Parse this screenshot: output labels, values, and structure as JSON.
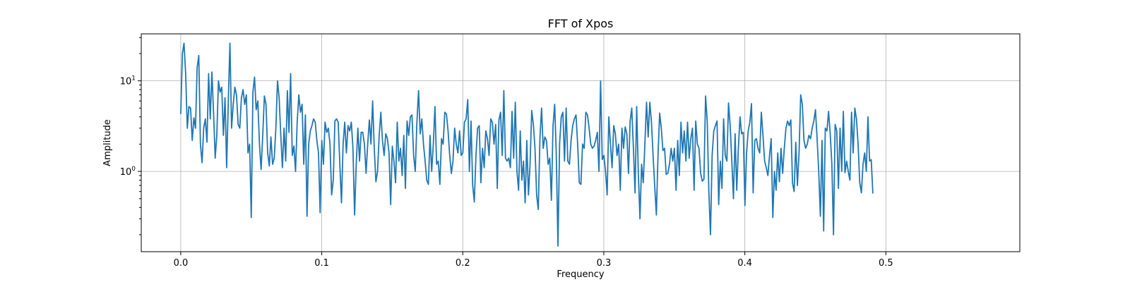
{
  "chart_data": {
    "type": "line",
    "title": "FFT of Xpos",
    "xlabel": "Frequency",
    "ylabel": "Amplitude",
    "xlim": [
      -0.028,
      0.595
    ],
    "ylim": [
      0.13,
      33
    ],
    "yscale": "log",
    "grid": true,
    "series_color": "#1f77b4",
    "xticks": [
      {
        "value": 0.0,
        "label": "0.0"
      },
      {
        "value": 0.1,
        "label": "0.1"
      },
      {
        "value": 0.2,
        "label": "0.2"
      },
      {
        "value": 0.3,
        "label": "0.3"
      },
      {
        "value": 0.4,
        "label": "0.4"
      },
      {
        "value": 0.5,
        "label": "0.5"
      }
    ],
    "yticks": [
      {
        "value": 1,
        "base": "10",
        "exp": "0"
      },
      {
        "value": 10,
        "base": "10",
        "exp": "1"
      }
    ],
    "x_start": 0.0,
    "x_step": 0.001163,
    "values": [
      4.3,
      20.0,
      26.0,
      12.0,
      3.0,
      5.2,
      5.0,
      2.2,
      3.9,
      3.0,
      14.0,
      19.0,
      2.0,
      1.25,
      3.0,
      3.8,
      2.1,
      12.0,
      3.8,
      12.5,
      4.5,
      1.4,
      2.5,
      10.0,
      7.5,
      8.5,
      2.5,
      6.5,
      1.1,
      6.0,
      26.0,
      3.0,
      5.5,
      8.5,
      7.0,
      3.3,
      3.0,
      6.5,
      8.0,
      5.5,
      7.0,
      1.6,
      2.0,
      0.31,
      7.5,
      11.0,
      4.8,
      6.0,
      2.0,
      1.05,
      2.5,
      6.8,
      5.5,
      1.6,
      1.15,
      2.4,
      1.2,
      1.4,
      3.0,
      10.0,
      6.5,
      2.5,
      1.1,
      3.0,
      1.3,
      7.8,
      2.7,
      12.0,
      1.5,
      1.9,
      1.0,
      3.5,
      7.0,
      4.5,
      5.5,
      1.2,
      4.2,
      0.32,
      2.0,
      2.8,
      3.2,
      3.8,
      3.5,
      2.2,
      1.6,
      0.35,
      2.2,
      1.2,
      3.5,
      2.7,
      3.0,
      2.0,
      0.55,
      0.8,
      3.6,
      3.8,
      3.5,
      1.2,
      0.45,
      2.0,
      3.5,
      1.6,
      3.2,
      2.8,
      3.5,
      1.8,
      0.33,
      1.2,
      3.0,
      1.3,
      2.7,
      2.7,
      2.0,
      0.95,
      2.0,
      3.7,
      2.0,
      6.0,
      1.8,
      0.77,
      1.0,
      2.5,
      4.5,
      2.2,
      1.5,
      2.6,
      2.3,
      1.6,
      0.43,
      1.9,
      1.3,
      0.75,
      3.5,
      1.3,
      1.8,
      0.9,
      2.5,
      0.65,
      3.6,
      2.5,
      4.0,
      4.2,
      1.5,
      1.0,
      3.5,
      7.8,
      2.6,
      3.8,
      2.0,
      1.3,
      0.8,
      0.72,
      2.5,
      1.0,
      2.0,
      5.2,
      1.2,
      1.3,
      0.72,
      2.3,
      2.0,
      4.5,
      4.3,
      2.8,
      1.5,
      0.95,
      1.3,
      3.0,
      2.0,
      1.6,
      2.8,
      1.5,
      1.6,
      3.5,
      3.8,
      6.2,
      1.0,
      3.6,
      0.7,
      0.46,
      1.5,
      3.0,
      3.2,
      0.75,
      1.8,
      1.1,
      2.8,
      2.3,
      1.5,
      3.8,
      3.5,
      2.0,
      3.3,
      0.65,
      3.7,
      4.5,
      1.5,
      7.8,
      1.4,
      1.3,
      1.4,
      1.1,
      4.6,
      1.4,
      5.8,
      1.0,
      0.62,
      2.8,
      0.8,
      1.3,
      0.45,
      2.2,
      0.55,
      1.2,
      4.7,
      3.3,
      1.8,
      0.55,
      0.38,
      2.3,
      5.0,
      1.8,
      2.4,
      2.2,
      1.2,
      1.4,
      0.48,
      3.2,
      5.5,
      1.5,
      0.15,
      2.0,
      4.0,
      4.5,
      1.3,
      5.0,
      1.3,
      1.2,
      2.2,
      3.2,
      3.8,
      4.2,
      2.0,
      0.75,
      0.72,
      2.0,
      1.8,
      4.5,
      4.2,
      3.0,
      2.0,
      1.8,
      1.9,
      2.2,
      2.7,
      1.0,
      10.0,
      1.35,
      1.5,
      1.0,
      0.55,
      4.0,
      2.0,
      1.1,
      3.2,
      2.6,
      1.5,
      2.0,
      0.62,
      3.0,
      1.8,
      3.1,
      2.6,
      0.95,
      3.6,
      5.0,
      1.8,
      0.58,
      5.2,
      0.95,
      0.3,
      1.2,
      0.75,
      2.0,
      5.8,
      2.4,
      5.8,
      3.5,
      1.5,
      0.68,
      0.33,
      1.5,
      4.4,
      3.0,
      1.7,
      1.8,
      0.93,
      0.95,
      1.2,
      1.8,
      1.3,
      1.8,
      0.62,
      2.2,
      0.9,
      3.5,
      1.6,
      2.8,
      1.3,
      3.5,
      1.4,
      2.3,
      3.0,
      0.62,
      3.6,
      2.0,
      1.8,
      0.95,
      0.78,
      0.82,
      6.8,
      3.6,
      0.6,
      0.2,
      1.5,
      2.8,
      3.2,
      3.6,
      0.43,
      1.3,
      0.65,
      3.8,
      1.5,
      1.3,
      5.7,
      3.2,
      1.3,
      0.5,
      2.6,
      0.62,
      1.8,
      4.0,
      2.6,
      2.7,
      0.42,
      1.6,
      2.8,
      3.5,
      5.6,
      0.58,
      2.2,
      2.3,
      1.8,
      1.6,
      4.5,
      2.5,
      1.3,
      1.1,
      0.9,
      1.5,
      2.3,
      0.31,
      1.0,
      0.62,
      1.6,
      0.77,
      1.8,
      0.95,
      1.8,
      3.0,
      3.6,
      3.2,
      3.7,
      0.75,
      0.6,
      2.1,
      0.7,
      1.6,
      7.0,
      5.5,
      2.2,
      1.8,
      2.0,
      2.5,
      2.3,
      3.0,
      3.6,
      4.8,
      2.3,
      1.0,
      0.32,
      2.2,
      0.22,
      3.0,
      2.8,
      4.6,
      2.6,
      1.2,
      0.2,
      3.3,
      2.8,
      0.65,
      3.0,
      1.0,
      4.6,
      0.97,
      1.3,
      1.0,
      0.8,
      4.5,
      1.6,
      5.0,
      3.8,
      2.0,
      0.75,
      0.58,
      1.2,
      1.6,
      1.0,
      4.0,
      1.3,
      1.35,
      0.57
    ]
  }
}
